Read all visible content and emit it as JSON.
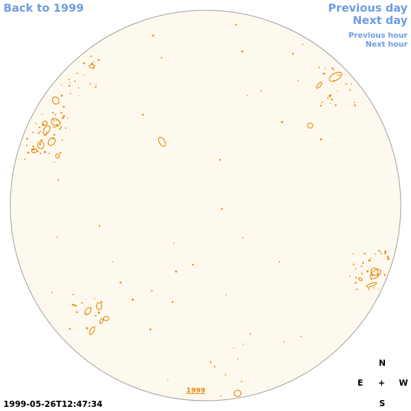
{
  "nav": {
    "back": "Back to 1999",
    "previous_day": "Previous day",
    "next_day": "Next day",
    "previous_hour": "Previous hour",
    "next_hour": "Next hour"
  },
  "timestamp": "1999-05-26T12:47:34",
  "year_label": "1999",
  "compass": {
    "north": "N",
    "east": "E",
    "center": "+",
    "west": "W",
    "south": "S"
  },
  "colors": {
    "link": "#6f9be3",
    "disk_fill": "#fdf9ee",
    "disk_stroke": "#999999",
    "contour": "#e8890c"
  },
  "icons": {
    "solar_disk": "solar-disk-icon"
  }
}
